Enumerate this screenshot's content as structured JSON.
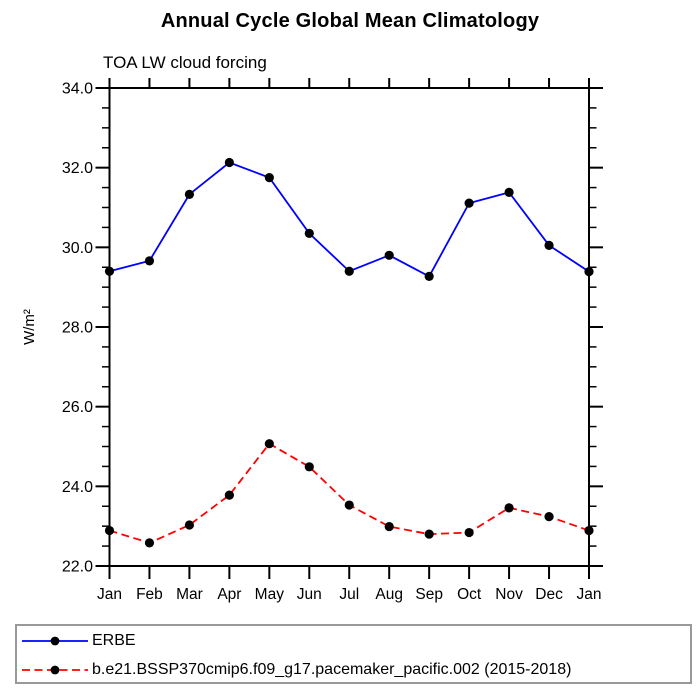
{
  "header": {
    "title": "Annual Cycle Global Mean Climatology",
    "subtitle": "TOA LW cloud forcing"
  },
  "chart_data": {
    "type": "line",
    "title": "Annual Cycle Global Mean Climatology",
    "subtitle": "TOA LW cloud forcing",
    "ylabel": "W/m²",
    "xlabel": "",
    "categories": [
      "Jan",
      "Feb",
      "Mar",
      "Apr",
      "May",
      "Jun",
      "Jul",
      "Aug",
      "Sep",
      "Oct",
      "Nov",
      "Dec",
      "Jan"
    ],
    "series": [
      {
        "name": "ERBE",
        "color": "#0000ff",
        "line_style": "solid",
        "marker": "filled-circle",
        "marker_color": "#000000",
        "values": [
          29.4,
          29.66,
          31.33,
          32.13,
          31.75,
          30.35,
          29.4,
          29.8,
          29.27,
          31.11,
          31.38,
          30.05,
          29.39
        ]
      },
      {
        "name": "b.e21.BSSP370cmip6.f09_g17.pacemaker_pacific.002 (2015-2018)",
        "color": "#ff0000",
        "line_style": "dashed",
        "marker": "filled-circle",
        "marker_color": "#000000",
        "values": [
          22.89,
          22.58,
          23.03,
          23.78,
          25.07,
          24.49,
          23.53,
          22.99,
          22.8,
          22.84,
          23.46,
          23.24,
          22.89
        ]
      }
    ],
    "ylim": [
      22.0,
      34.0
    ],
    "yticks": [
      22,
      24,
      26,
      28,
      30,
      32,
      34
    ],
    "ytick_labels": [
      "22.0",
      "24.0",
      "26.0",
      "28.0",
      "30.0",
      "32.0",
      "34.0"
    ],
    "y_minor_step": 0.5,
    "grid": false,
    "legend_position": "bottom"
  },
  "colors": {
    "axis": "#000000",
    "erbe_line": "#0000ff",
    "model_line": "#ff0000",
    "marker": "#000000",
    "legend_border": "#999999"
  }
}
